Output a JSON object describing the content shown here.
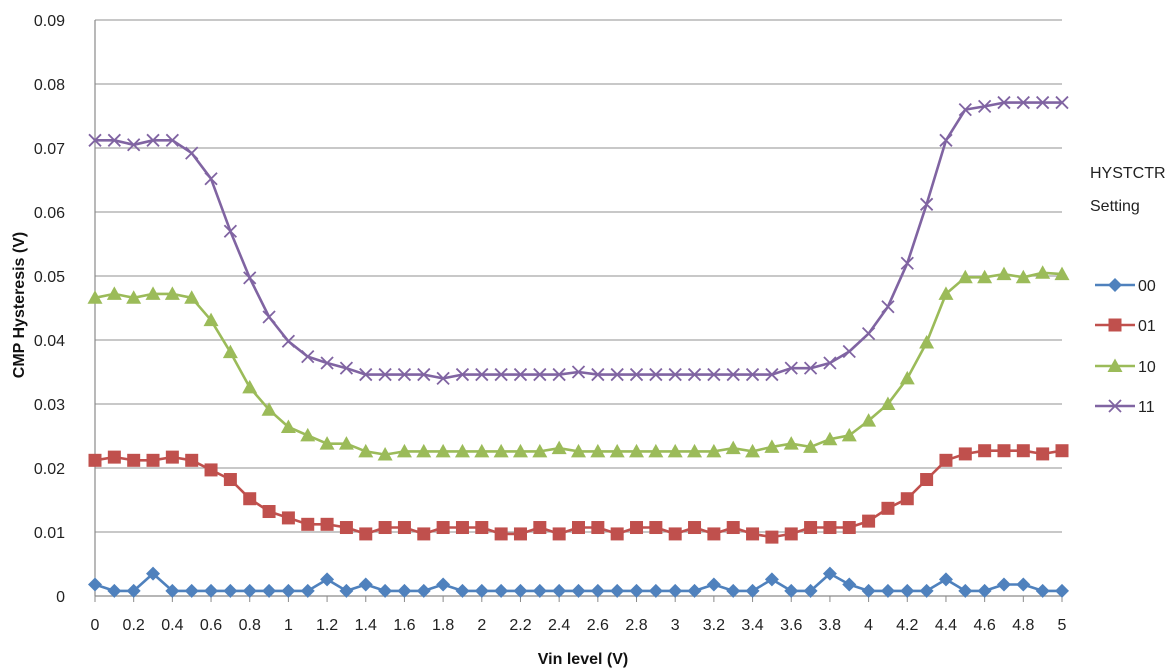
{
  "chart_data": {
    "type": "line",
    "title": "",
    "xlabel": "Vin level (V)",
    "ylabel": "CMP Hysteresis (V)",
    "xlim": [
      0,
      5
    ],
    "ylim": [
      0,
      0.09
    ],
    "x_ticks": [
      "0",
      "0.2",
      "0.4",
      "0.6",
      "0.8",
      "1",
      "1.2",
      "1.4",
      "1.6",
      "1.8",
      "2",
      "2.2",
      "2.4",
      "2.6",
      "2.8",
      "3",
      "3.2",
      "3.4",
      "3.6",
      "3.8",
      "4",
      "4.2",
      "4.4",
      "4.6",
      "4.8",
      "5"
    ],
    "y_ticks": [
      "0",
      "0.01",
      "0.02",
      "0.03",
      "0.04",
      "0.05",
      "0.06",
      "0.07",
      "0.08",
      "0.09"
    ],
    "grid": "horizontal",
    "legend": {
      "title_line1": "HYSTCTR",
      "title_line2": "Setting",
      "placement": "right"
    },
    "x": [
      0,
      0.1,
      0.2,
      0.3,
      0.4,
      0.5,
      0.6,
      0.7,
      0.8,
      0.9,
      1.0,
      1.1,
      1.2,
      1.3,
      1.4,
      1.5,
      1.6,
      1.7,
      1.8,
      1.9,
      2.0,
      2.1,
      2.2,
      2.3,
      2.4,
      2.5,
      2.6,
      2.7,
      2.8,
      2.9,
      3.0,
      3.1,
      3.2,
      3.3,
      3.4,
      3.5,
      3.6,
      3.7,
      3.8,
      3.9,
      4.0,
      4.1,
      4.2,
      4.3,
      4.4,
      4.5,
      4.6,
      4.7,
      4.8,
      4.9,
      5.0
    ],
    "series": [
      {
        "name": "00",
        "color": "#4F81BD",
        "marker": "diamond",
        "values": [
          0.0018,
          0.0008,
          0.0008,
          0.0035,
          0.0008,
          0.0008,
          0.0008,
          0.0008,
          0.0008,
          0.0008,
          0.0008,
          0.0008,
          0.0026,
          0.0008,
          0.0018,
          0.0008,
          0.0008,
          0.0008,
          0.0018,
          0.0008,
          0.0008,
          0.0008,
          0.0008,
          0.0008,
          0.0008,
          0.0008,
          0.0008,
          0.0008,
          0.0008,
          0.0008,
          0.0008,
          0.0008,
          0.0018,
          0.0008,
          0.0008,
          0.0026,
          0.0008,
          0.0008,
          0.0035,
          0.0018,
          0.0008,
          0.0008,
          0.0008,
          0.0008,
          0.0026,
          0.0008,
          0.0008,
          0.0018,
          0.0018,
          0.0008,
          0.0008
        ]
      },
      {
        "name": "01",
        "color": "#C0504D",
        "marker": "square",
        "values": [
          0.0212,
          0.0217,
          0.0212,
          0.0212,
          0.0217,
          0.0212,
          0.0197,
          0.0182,
          0.0152,
          0.0132,
          0.0122,
          0.0112,
          0.0112,
          0.0107,
          0.0097,
          0.0107,
          0.0107,
          0.0097,
          0.0107,
          0.0107,
          0.0107,
          0.0097,
          0.0097,
          0.0107,
          0.0097,
          0.0107,
          0.0107,
          0.0097,
          0.0107,
          0.0107,
          0.0097,
          0.0107,
          0.0097,
          0.0107,
          0.0097,
          0.0092,
          0.0097,
          0.0107,
          0.0107,
          0.0107,
          0.0117,
          0.0137,
          0.0152,
          0.0182,
          0.0212,
          0.0222,
          0.0227,
          0.0227,
          0.0227,
          0.0222,
          0.0227
        ]
      },
      {
        "name": "10",
        "color": "#9BBB59",
        "marker": "triangle",
        "values": [
          0.0466,
          0.0472,
          0.0466,
          0.0472,
          0.0472,
          0.0466,
          0.0431,
          0.0381,
          0.0326,
          0.0291,
          0.0264,
          0.0251,
          0.0238,
          0.0238,
          0.0226,
          0.0221,
          0.0226,
          0.0226,
          0.0226,
          0.0226,
          0.0226,
          0.0226,
          0.0226,
          0.0226,
          0.0231,
          0.0226,
          0.0226,
          0.0226,
          0.0226,
          0.0226,
          0.0226,
          0.0226,
          0.0226,
          0.0231,
          0.0226,
          0.0233,
          0.0238,
          0.0233,
          0.0245,
          0.0251,
          0.0274,
          0.03,
          0.034,
          0.0396,
          0.0472,
          0.0498,
          0.0498,
          0.0503,
          0.0498,
          0.0505,
          0.0503
        ]
      },
      {
        "name": "11",
        "color": "#8064A2",
        "marker": "x",
        "values": [
          0.0712,
          0.0712,
          0.0705,
          0.0712,
          0.0712,
          0.0692,
          0.0652,
          0.057,
          0.0497,
          0.0436,
          0.0398,
          0.0374,
          0.0364,
          0.0356,
          0.0346,
          0.0346,
          0.0346,
          0.0346,
          0.034,
          0.0346,
          0.0346,
          0.0346,
          0.0346,
          0.0346,
          0.0346,
          0.035,
          0.0346,
          0.0346,
          0.0346,
          0.0346,
          0.0346,
          0.0346,
          0.0346,
          0.0346,
          0.0346,
          0.0346,
          0.0356,
          0.0356,
          0.0364,
          0.0382,
          0.041,
          0.0452,
          0.052,
          0.0612,
          0.0712,
          0.076,
          0.0765,
          0.0771,
          0.0771,
          0.0771,
          0.0771
        ]
      }
    ]
  }
}
